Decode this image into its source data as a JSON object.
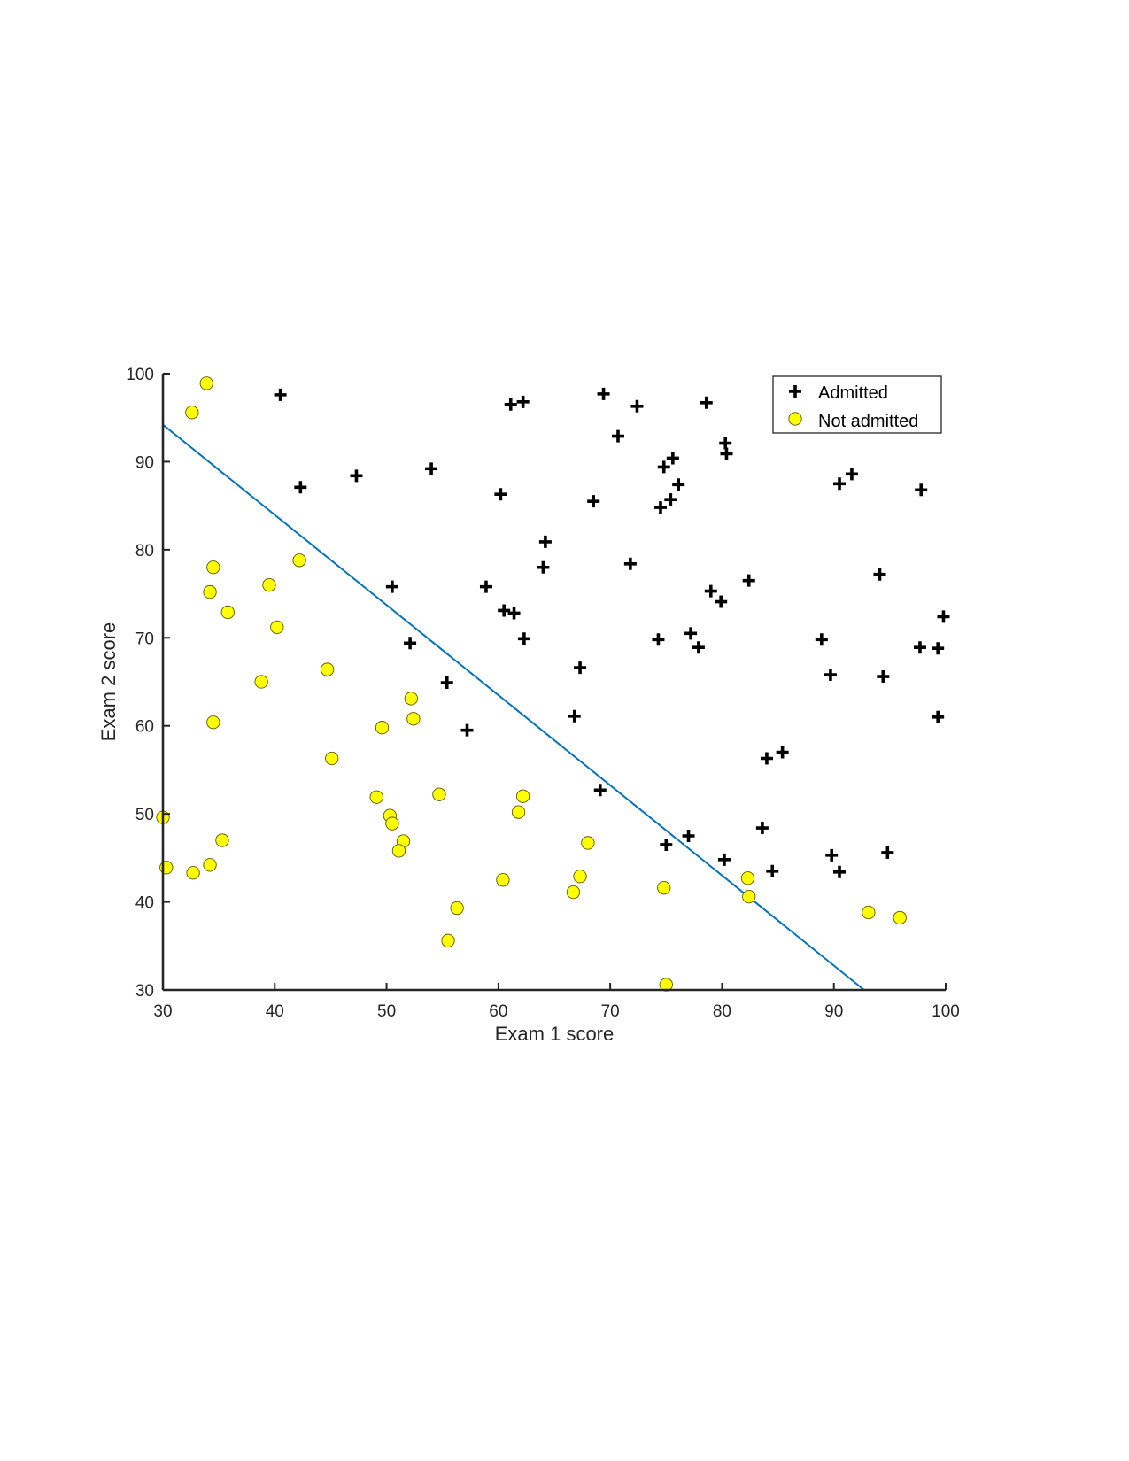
{
  "chart_data": {
    "type": "scatter",
    "title": "",
    "xlabel": "Exam 1 score",
    "ylabel": "Exam 2 score",
    "xlim": [
      30,
      100
    ],
    "ylim": [
      30,
      100
    ],
    "xticks": [
      30,
      40,
      50,
      60,
      70,
      80,
      90,
      100
    ],
    "yticks": [
      30,
      40,
      50,
      60,
      70,
      80,
      90,
      100
    ],
    "grid": false,
    "legend_position": "top-right",
    "series": [
      {
        "name": "Admitted",
        "marker": "plus",
        "color": "#000000",
        "points": [
          [
            40.5,
            97.6
          ],
          [
            61.1,
            96.5
          ],
          [
            62.2,
            96.8
          ],
          [
            69.4,
            97.7
          ],
          [
            72.4,
            96.3
          ],
          [
            78.6,
            96.7
          ],
          [
            70.7,
            92.9
          ],
          [
            80.3,
            92.1
          ],
          [
            80.4,
            90.9
          ],
          [
            75.6,
            90.4
          ],
          [
            74.8,
            89.4
          ],
          [
            54.0,
            89.2
          ],
          [
            47.3,
            88.4
          ],
          [
            42.3,
            87.1
          ],
          [
            76.1,
            87.4
          ],
          [
            91.6,
            88.6
          ],
          [
            90.5,
            87.5
          ],
          [
            97.8,
            86.8
          ],
          [
            60.2,
            86.3
          ],
          [
            68.5,
            85.5
          ],
          [
            75.4,
            85.7
          ],
          [
            74.5,
            84.8
          ],
          [
            64.2,
            80.9
          ],
          [
            64.0,
            78.0
          ],
          [
            71.8,
            78.4
          ],
          [
            50.5,
            75.8
          ],
          [
            58.9,
            75.8
          ],
          [
            82.4,
            76.5
          ],
          [
            94.1,
            77.2
          ],
          [
            60.5,
            73.1
          ],
          [
            61.4,
            72.8
          ],
          [
            79.0,
            75.3
          ],
          [
            79.9,
            74.1
          ],
          [
            99.8,
            72.4
          ],
          [
            62.3,
            69.9
          ],
          [
            52.1,
            69.4
          ],
          [
            74.3,
            69.8
          ],
          [
            77.2,
            70.5
          ],
          [
            77.9,
            68.9
          ],
          [
            88.9,
            69.8
          ],
          [
            97.7,
            68.9
          ],
          [
            99.3,
            68.8
          ],
          [
            67.3,
            66.6
          ],
          [
            55.4,
            64.9
          ],
          [
            89.7,
            65.8
          ],
          [
            94.4,
            65.6
          ],
          [
            66.8,
            61.1
          ],
          [
            99.3,
            61.0
          ],
          [
            57.2,
            59.5
          ],
          [
            85.4,
            57.0
          ],
          [
            84.0,
            56.3
          ],
          [
            69.1,
            52.7
          ],
          [
            83.6,
            48.4
          ],
          [
            77.0,
            47.5
          ],
          [
            75.0,
            46.5
          ],
          [
            94.8,
            45.6
          ],
          [
            89.8,
            45.3
          ],
          [
            80.2,
            44.8
          ],
          [
            84.5,
            43.5
          ],
          [
            90.5,
            43.4
          ]
        ]
      },
      {
        "name": "Not admitted",
        "marker": "circle",
        "color": "#ffff00",
        "points": [
          [
            33.9,
            98.9
          ],
          [
            32.6,
            95.6
          ],
          [
            34.5,
            78.0
          ],
          [
            42.2,
            78.8
          ],
          [
            34.2,
            75.2
          ],
          [
            39.5,
            76.0
          ],
          [
            35.8,
            72.9
          ],
          [
            40.2,
            71.2
          ],
          [
            44.7,
            66.4
          ],
          [
            38.8,
            65.0
          ],
          [
            52.2,
            63.1
          ],
          [
            52.4,
            60.8
          ],
          [
            34.5,
            60.4
          ],
          [
            49.6,
            59.8
          ],
          [
            45.1,
            56.3
          ],
          [
            49.1,
            51.9
          ],
          [
            54.7,
            52.2
          ],
          [
            62.2,
            52.0
          ],
          [
            50.3,
            49.8
          ],
          [
            61.8,
            50.2
          ],
          [
            50.5,
            48.9
          ],
          [
            30.0,
            49.6
          ],
          [
            51.5,
            46.9
          ],
          [
            35.3,
            47.0
          ],
          [
            68.0,
            46.7
          ],
          [
            51.1,
            45.8
          ],
          [
            30.3,
            43.9
          ],
          [
            32.7,
            43.3
          ],
          [
            34.2,
            44.2
          ],
          [
            67.3,
            42.9
          ],
          [
            82.3,
            42.7
          ],
          [
            60.4,
            42.5
          ],
          [
            74.8,
            41.6
          ],
          [
            66.7,
            41.1
          ],
          [
            82.4,
            40.6
          ],
          [
            56.3,
            39.3
          ],
          [
            93.1,
            38.8
          ],
          [
            95.9,
            38.2
          ],
          [
            55.5,
            35.6
          ],
          [
            75.0,
            30.6
          ]
        ]
      }
    ],
    "decision_boundary": {
      "x": [
        30.0,
        92.7
      ],
      "y": [
        94.2,
        30.0
      ],
      "color": "#0072bd"
    },
    "legend": {
      "items": [
        "Admitted",
        "Not admitted"
      ]
    }
  }
}
